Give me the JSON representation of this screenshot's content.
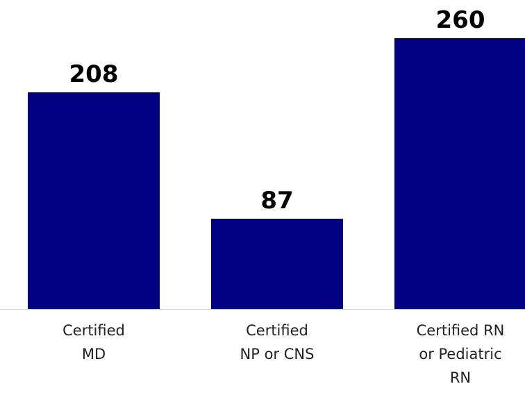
{
  "chart_data": {
    "type": "bar",
    "categories": [
      "Certified\nMD",
      "Certified\nNP or CNS",
      "Certified RN\nor Pediatric\nRN"
    ],
    "values": [
      208,
      87,
      260
    ],
    "color": "#000080"
  }
}
